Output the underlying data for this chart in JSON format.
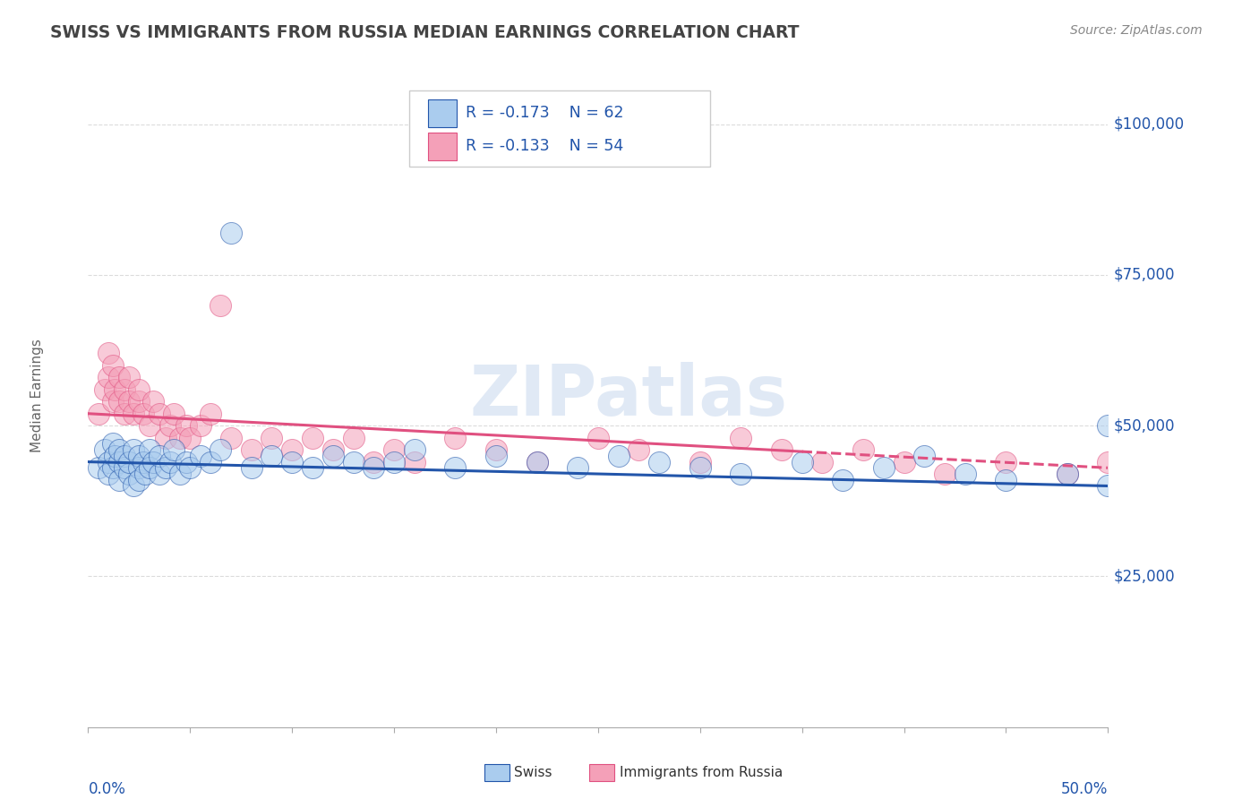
{
  "title": "SWISS VS IMMIGRANTS FROM RUSSIA MEDIAN EARNINGS CORRELATION CHART",
  "source_text": "Source: ZipAtlas.com",
  "ylabel": "Median Earnings",
  "y_tick_labels": [
    "$25,000",
    "$50,000",
    "$75,000",
    "$100,000"
  ],
  "y_tick_values": [
    25000,
    50000,
    75000,
    100000
  ],
  "xmin": 0.0,
  "xmax": 0.5,
  "ymin": 0,
  "ymax": 110000,
  "swiss_color": "#aaccee",
  "russia_color": "#f4a0b8",
  "swiss_line_color": "#2255aa",
  "russia_line_color": "#e05080",
  "grid_color": "#cccccc",
  "title_color": "#444444",
  "watermark_color": "#c8d8ee",
  "background_color": "#ffffff",
  "swiss_line_intercept": 44000,
  "swiss_line_slope": -8000,
  "russia_line_intercept": 52000,
  "russia_line_slope": -18000,
  "russia_line_solid_end": 0.35,
  "swiss_scatter_x": [
    0.005,
    0.008,
    0.01,
    0.01,
    0.012,
    0.012,
    0.013,
    0.015,
    0.015,
    0.015,
    0.018,
    0.018,
    0.02,
    0.02,
    0.022,
    0.022,
    0.025,
    0.025,
    0.025,
    0.027,
    0.028,
    0.03,
    0.03,
    0.032,
    0.035,
    0.035,
    0.038,
    0.04,
    0.042,
    0.045,
    0.048,
    0.05,
    0.055,
    0.06,
    0.065,
    0.07,
    0.08,
    0.09,
    0.1,
    0.11,
    0.12,
    0.13,
    0.14,
    0.15,
    0.16,
    0.18,
    0.2,
    0.22,
    0.24,
    0.26,
    0.28,
    0.3,
    0.32,
    0.35,
    0.37,
    0.39,
    0.41,
    0.43,
    0.45,
    0.48,
    0.5,
    0.5
  ],
  "swiss_scatter_y": [
    43000,
    46000,
    44000,
    42000,
    47000,
    43000,
    45000,
    44000,
    46000,
    41000,
    43000,
    45000,
    42000,
    44000,
    46000,
    40000,
    43000,
    45000,
    41000,
    44000,
    42000,
    46000,
    43000,
    44000,
    42000,
    45000,
    43000,
    44000,
    46000,
    42000,
    44000,
    43000,
    45000,
    44000,
    46000,
    82000,
    43000,
    45000,
    44000,
    43000,
    45000,
    44000,
    43000,
    44000,
    46000,
    43000,
    45000,
    44000,
    43000,
    45000,
    44000,
    43000,
    42000,
    44000,
    41000,
    43000,
    45000,
    42000,
    41000,
    42000,
    40000,
    50000
  ],
  "russia_scatter_x": [
    0.005,
    0.008,
    0.01,
    0.01,
    0.012,
    0.012,
    0.013,
    0.015,
    0.015,
    0.018,
    0.018,
    0.02,
    0.02,
    0.022,
    0.025,
    0.025,
    0.027,
    0.03,
    0.032,
    0.035,
    0.038,
    0.04,
    0.042,
    0.045,
    0.048,
    0.05,
    0.055,
    0.06,
    0.065,
    0.07,
    0.08,
    0.09,
    0.1,
    0.11,
    0.12,
    0.13,
    0.14,
    0.15,
    0.16,
    0.18,
    0.2,
    0.22,
    0.25,
    0.27,
    0.3,
    0.32,
    0.34,
    0.36,
    0.38,
    0.4,
    0.42,
    0.45,
    0.48,
    0.5
  ],
  "russia_scatter_y": [
    52000,
    56000,
    62000,
    58000,
    54000,
    60000,
    56000,
    54000,
    58000,
    52000,
    56000,
    54000,
    58000,
    52000,
    54000,
    56000,
    52000,
    50000,
    54000,
    52000,
    48000,
    50000,
    52000,
    48000,
    50000,
    48000,
    50000,
    52000,
    70000,
    48000,
    46000,
    48000,
    46000,
    48000,
    46000,
    48000,
    44000,
    46000,
    44000,
    48000,
    46000,
    44000,
    48000,
    46000,
    44000,
    48000,
    46000,
    44000,
    46000,
    44000,
    42000,
    44000,
    42000,
    44000
  ]
}
